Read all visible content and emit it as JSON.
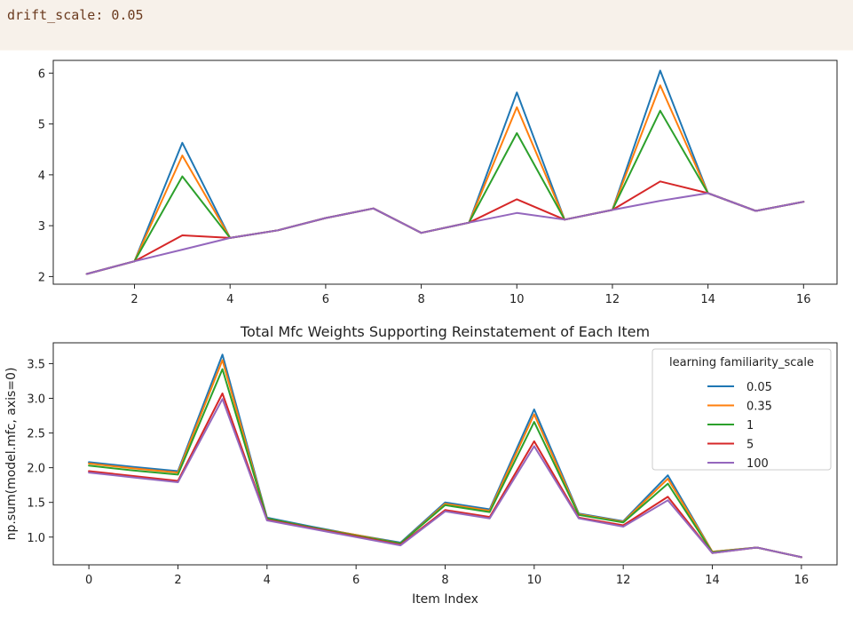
{
  "code_cell": {
    "text": "drift_scale: 0.05"
  },
  "colors": {
    "0.05": "#1f77b4",
    "0.35": "#ff7f0e",
    "1": "#2ca02c",
    "5": "#d62728",
    "100": "#9467bd"
  },
  "chart_data": [
    {
      "type": "line",
      "title": "",
      "xlabel": "",
      "ylabel": "",
      "x": [
        1,
        2,
        3,
        4,
        5,
        6,
        7,
        8,
        9,
        10,
        11,
        12,
        13,
        14,
        15,
        16
      ],
      "xlim": [
        0.3,
        16.7
      ],
      "ylim": [
        1.85,
        6.25
      ],
      "xticks": [
        2,
        4,
        6,
        8,
        10,
        12,
        14,
        16
      ],
      "yticks": [
        2,
        3,
        4,
        5,
        6
      ],
      "grid": false,
      "series": [
        {
          "key": "0.05",
          "values": [
            2.05,
            2.3,
            4.63,
            2.76,
            2.91,
            3.15,
            3.34,
            2.86,
            3.06,
            5.62,
            3.12,
            3.31,
            6.05,
            3.64,
            3.29,
            3.47
          ]
        },
        {
          "key": "0.35",
          "values": [
            2.05,
            2.3,
            4.38,
            2.76,
            2.91,
            3.15,
            3.34,
            2.86,
            3.06,
            5.33,
            3.12,
            3.31,
            5.76,
            3.64,
            3.29,
            3.47
          ]
        },
        {
          "key": "1",
          "values": [
            2.05,
            2.3,
            3.97,
            2.76,
            2.91,
            3.15,
            3.34,
            2.86,
            3.06,
            4.82,
            3.12,
            3.31,
            5.26,
            3.64,
            3.29,
            3.47
          ]
        },
        {
          "key": "5",
          "values": [
            2.05,
            2.3,
            2.81,
            2.76,
            2.91,
            3.15,
            3.34,
            2.86,
            3.06,
            3.52,
            3.12,
            3.31,
            3.87,
            3.64,
            3.29,
            3.47
          ]
        },
        {
          "key": "100",
          "values": [
            2.05,
            2.3,
            2.53,
            2.76,
            2.91,
            3.15,
            3.34,
            2.86,
            3.06,
            3.25,
            3.12,
            3.31,
            3.49,
            3.64,
            3.29,
            3.47
          ]
        }
      ]
    },
    {
      "type": "line",
      "title": "Total Mfc Weights Supporting Reinstatement of Each Item",
      "xlabel": "Item Index",
      "ylabel": "np.sum(model.mfc, axis=0)",
      "x": [
        0,
        1,
        2,
        3,
        4,
        5,
        6,
        7,
        8,
        9,
        10,
        11,
        12,
        13,
        14,
        15,
        16
      ],
      "xlim": [
        -0.8,
        16.8
      ],
      "ylim": [
        0.6,
        3.8
      ],
      "xticks": [
        0,
        2,
        4,
        6,
        8,
        10,
        12,
        14,
        16
      ],
      "yticks": [
        1.0,
        1.5,
        2.0,
        2.5,
        3.0,
        3.5
      ],
      "ytick_labels": [
        "1.0",
        "1.5",
        "2.0",
        "2.5",
        "3.0",
        "3.5"
      ],
      "grid": false,
      "legend": {
        "title": "learning familiarity_scale",
        "position": "top-right"
      },
      "series": [
        {
          "name": "0.05",
          "key": "0.05",
          "values": [
            2.08,
            2.01,
            1.95,
            3.63,
            1.28,
            1.15,
            1.03,
            0.92,
            1.5,
            1.4,
            2.84,
            1.34,
            1.23,
            1.89,
            0.79,
            0.85,
            0.71
          ]
        },
        {
          "name": "0.35",
          "key": "0.35",
          "values": [
            2.06,
            1.99,
            1.93,
            3.55,
            1.27,
            1.14,
            1.03,
            0.91,
            1.48,
            1.38,
            2.77,
            1.33,
            1.22,
            1.84,
            0.79,
            0.85,
            0.71
          ]
        },
        {
          "name": "1",
          "key": "1",
          "values": [
            2.03,
            1.96,
            1.9,
            3.42,
            1.27,
            1.14,
            1.02,
            0.91,
            1.46,
            1.36,
            2.66,
            1.32,
            1.21,
            1.77,
            0.78,
            0.85,
            0.71
          ]
        },
        {
          "name": "5",
          "key": "5",
          "values": [
            1.95,
            1.88,
            1.81,
            3.07,
            1.25,
            1.13,
            1.01,
            0.89,
            1.39,
            1.29,
            2.38,
            1.28,
            1.17,
            1.58,
            0.77,
            0.85,
            0.71
          ]
        },
        {
          "name": "100",
          "key": "100",
          "values": [
            1.93,
            1.86,
            1.79,
            2.99,
            1.24,
            1.12,
            1.0,
            0.88,
            1.37,
            1.27,
            2.31,
            1.27,
            1.15,
            1.53,
            0.77,
            0.85,
            0.71
          ]
        }
      ]
    }
  ]
}
